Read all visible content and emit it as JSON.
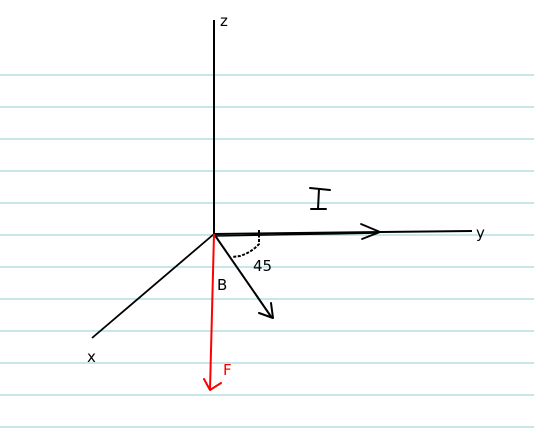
{
  "labels": {
    "z_axis": "z",
    "y_axis": "y",
    "x_axis": "x",
    "angle": "45",
    "field": "B",
    "force": "F",
    "current": "I"
  },
  "colors": {
    "ruled_line": "#8fcfd0",
    "ink": "#000000",
    "force": "#ff0000"
  }
}
